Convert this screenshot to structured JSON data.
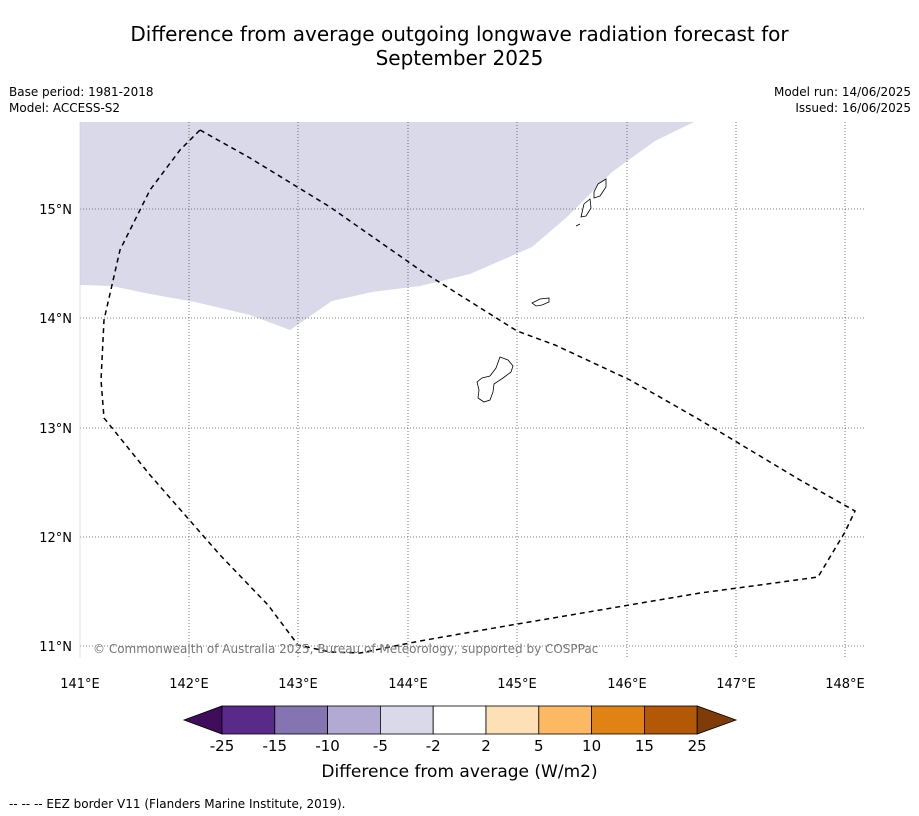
{
  "title_line1": "Difference from average outgoing longwave radiation forecast for",
  "title_line2": "September 2025",
  "base_period": "Base period: 1981-2018",
  "model": "Model: ACCESS-S2",
  "model_run": "Model run: 14/06/2025",
  "issued": "Issued: 16/06/2025",
  "copyright": "© Commonwealth of Australia 2025, Bureau of Meteorology, supported by COSPPac",
  "lon_ticks": [
    "141°E",
    "142°E",
    "143°E",
    "144°E",
    "145°E",
    "146°E",
    "147°E",
    "148°E"
  ],
  "lat_ticks": [
    "15°N",
    "14°N",
    "13°N",
    "12°N",
    "11°N"
  ],
  "colorbar": {
    "title": "Difference from average (W/m2)",
    "ticks": [
      "-25",
      "-15",
      "-10",
      "-5",
      "-2",
      "2",
      "5",
      "10",
      "15",
      "25"
    ],
    "colors": [
      "#3f0d5c",
      "#5a2a8a",
      "#8474b2",
      "#b2aad3",
      "#d9d9ea",
      "#ffffff",
      "#fde0b5",
      "#fdb863",
      "#e08214",
      "#b35806",
      "#7f3b08"
    ]
  },
  "footnote": "--  --  -- EEZ border V11 (Flanders Marine Institute, 2019).",
  "colors": {
    "shade": "#d9d9ea",
    "grid": "#555555",
    "eez": "#000000"
  }
}
